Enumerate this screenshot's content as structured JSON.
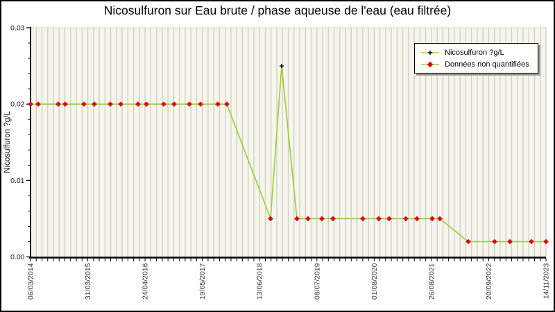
{
  "title": "Nicosulfuron sur Eau brute / phase aqueuse de l'eau (eau filtrée)",
  "legend": {
    "series1": "Nicosulfuron ?g/L",
    "series2": "Données non quantifiées"
  },
  "colors": {
    "line": "#9dce3a",
    "non_quantified_marker": "#e00010",
    "quantified_marker": "#000000",
    "plot_bg": "#f7f6ec",
    "gridline": "#d0d0c8",
    "axis": "#000000",
    "x_label": "#3a3a3a",
    "y_label": "#1a1a1a"
  },
  "chart_data": {
    "type": "line",
    "title": "Nicosulfuron sur Eau brute / phase aqueuse de l'eau (eau filtrée)",
    "xlabel": "",
    "ylabel": "Nicosulfuron ?g/L",
    "ylim": [
      0,
      0.03
    ],
    "y_ticks": [
      0,
      0.01,
      0.02,
      0.03
    ],
    "y_tick_labels": [
      "0.00",
      "0.01",
      "0.02",
      "0.03"
    ],
    "y_minor_step": 0.002,
    "x_tick_labels": [
      "06/03/2014",
      "31/03/2015",
      "24/04/2016",
      "19/05/2017",
      "13/06/2018",
      "08/07/2019",
      "01/08/2020",
      "26/08/2021",
      "20/09/2022",
      "14/11/2023"
    ],
    "x_gridline_count": 91,
    "grid": "vertical",
    "legend_position": "top-right",
    "series": [
      {
        "name": "Nicosulfuron ?g/L",
        "marker": "black-plus"
      },
      {
        "name": "Données non quantifiées",
        "marker": "red-diamond"
      }
    ],
    "points": [
      {
        "x_frac": 0.0,
        "value": 0.02,
        "quantified": false,
        "approx_date": "06/03/2014"
      },
      {
        "x_frac": 0.0148,
        "value": 0.02,
        "quantified": false,
        "approx_date": "27/04/2014"
      },
      {
        "x_frac": 0.0538,
        "value": 0.02,
        "quantified": false,
        "approx_date": "13/09/2014"
      },
      {
        "x_frac": 0.0673,
        "value": 0.02,
        "quantified": false,
        "approx_date": "30/10/2014"
      },
      {
        "x_frac": 0.1036,
        "value": 0.02,
        "quantified": false,
        "approx_date": "08/03/2015"
      },
      {
        "x_frac": 0.1238,
        "value": 0.02,
        "quantified": false,
        "approx_date": "18/05/2015"
      },
      {
        "x_frac": 0.1548,
        "value": 0.02,
        "quantified": false,
        "approx_date": "05/09/2015"
      },
      {
        "x_frac": 0.175,
        "value": 0.02,
        "quantified": false,
        "approx_date": "16/11/2015"
      },
      {
        "x_frac": 0.2086,
        "value": 0.02,
        "quantified": false,
        "approx_date": "13/03/2016"
      },
      {
        "x_frac": 0.2248,
        "value": 0.02,
        "quantified": false,
        "approx_date": "10/05/2016"
      },
      {
        "x_frac": 0.2584,
        "value": 0.02,
        "quantified": false,
        "approx_date": "06/09/2016"
      },
      {
        "x_frac": 0.2786,
        "value": 0.02,
        "quantified": false,
        "approx_date": "16/11/2016"
      },
      {
        "x_frac": 0.3082,
        "value": 0.02,
        "quantified": false,
        "approx_date": "01/03/2017"
      },
      {
        "x_frac": 0.3298,
        "value": 0.02,
        "quantified": false,
        "approx_date": "17/05/2017"
      },
      {
        "x_frac": 0.3634,
        "value": 0.02,
        "quantified": false,
        "approx_date": "13/09/2017"
      },
      {
        "x_frac": 0.3809,
        "value": 0.02,
        "quantified": false,
        "approx_date": "14/11/2017"
      },
      {
        "x_frac": 0.4657,
        "value": 0.005,
        "quantified": false,
        "approx_date": "10/09/2018"
      },
      {
        "x_frac": 0.4872,
        "value": 0.025,
        "quantified": true,
        "approx_date": "25/11/2018"
      },
      {
        "x_frac": 0.5168,
        "value": 0.005,
        "quantified": false,
        "approx_date": "10/03/2019"
      },
      {
        "x_frac": 0.5383,
        "value": 0.005,
        "quantified": false,
        "approx_date": "25/05/2019"
      },
      {
        "x_frac": 0.5653,
        "value": 0.005,
        "quantified": false,
        "approx_date": "28/08/2019"
      },
      {
        "x_frac": 0.5868,
        "value": 0.005,
        "quantified": false,
        "approx_date": "12/11/2019"
      },
      {
        "x_frac": 0.6447,
        "value": 0.005,
        "quantified": false,
        "approx_date": "04/06/2020"
      },
      {
        "x_frac": 0.6756,
        "value": 0.005,
        "quantified": false,
        "approx_date": "22/09/2020"
      },
      {
        "x_frac": 0.6958,
        "value": 0.005,
        "quantified": false,
        "approx_date": "02/12/2020"
      },
      {
        "x_frac": 0.7281,
        "value": 0.005,
        "quantified": false,
        "approx_date": "27/03/2021"
      },
      {
        "x_frac": 0.7497,
        "value": 0.005,
        "quantified": false,
        "approx_date": "11/06/2021"
      },
      {
        "x_frac": 0.7793,
        "value": 0.005,
        "quantified": false,
        "approx_date": "24/09/2021"
      },
      {
        "x_frac": 0.7941,
        "value": 0.005,
        "quantified": false,
        "approx_date": "15/11/2021"
      },
      {
        "x_frac": 0.8493,
        "value": 0.002,
        "quantified": false,
        "approx_date": "30/05/2022"
      },
      {
        "x_frac": 0.9004,
        "value": 0.002,
        "quantified": false,
        "approx_date": "26/11/2022"
      },
      {
        "x_frac": 0.93,
        "value": 0.002,
        "quantified": false,
        "approx_date": "11/03/2023"
      },
      {
        "x_frac": 0.9717,
        "value": 0.002,
        "quantified": false,
        "approx_date": "06/08/2023"
      },
      {
        "x_frac": 1.0,
        "value": 0.002,
        "quantified": false,
        "approx_date": "14/11/2023"
      }
    ]
  }
}
